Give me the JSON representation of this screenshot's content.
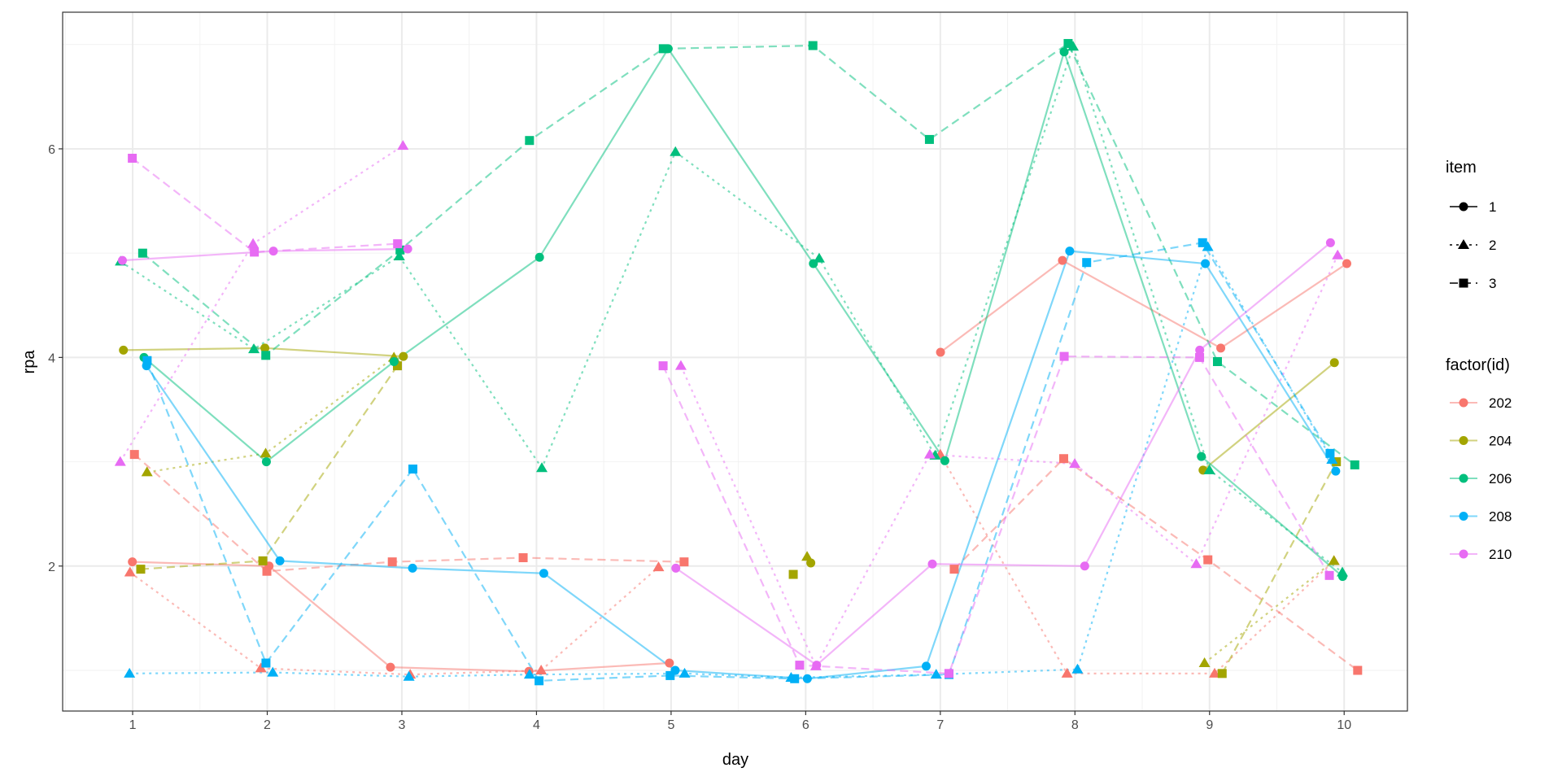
{
  "chart_data": {
    "type": "line",
    "xlabel": "day",
    "ylabel": "rpa",
    "xlim": [
      0.48,
      10.47
    ],
    "ylim": [
      0.61,
      7.31
    ],
    "x_ticks": [
      1,
      2,
      3,
      4,
      5,
      6,
      7,
      8,
      9,
      10
    ],
    "x_tick_labels": [
      "1",
      "2",
      "3",
      "4",
      "5",
      "6",
      "7",
      "8",
      "9",
      "10"
    ],
    "y_ticks": [
      2,
      4,
      6
    ],
    "y_tick_labels": [
      "2",
      "4",
      "6"
    ],
    "grid": true,
    "legend_position": "right",
    "legend_item": {
      "title": "item",
      "entries": [
        {
          "label": "1",
          "shape": "circle",
          "linetype": "solid"
        },
        {
          "label": "2",
          "shape": "triangle",
          "linetype": "dotted"
        },
        {
          "label": "3",
          "shape": "square",
          "linetype": "dashed"
        }
      ]
    },
    "legend_id": {
      "title": "factor(id)",
      "entries": [
        {
          "label": "202",
          "color": "#F8766D"
        },
        {
          "label": "204",
          "color": "#A3A500"
        },
        {
          "label": "206",
          "color": "#00BF7D"
        },
        {
          "label": "208",
          "color": "#00B0F6"
        },
        {
          "label": "210",
          "color": "#E76BF3"
        }
      ]
    },
    "x": [
      1,
      2,
      3,
      4,
      5,
      6,
      7,
      8,
      9,
      10
    ],
    "series": [
      {
        "id": "202",
        "item": "1",
        "values": [
          2.04,
          2.0,
          1.03,
          0.99,
          1.07,
          null,
          4.05,
          4.93,
          4.09,
          4.9
        ]
      },
      {
        "id": "202",
        "item": "2",
        "values": [
          1.94,
          1.02,
          0.96,
          1.0,
          1.99,
          null,
          3.07,
          0.97,
          0.97,
          2.05
        ]
      },
      {
        "id": "202",
        "item": "3",
        "values": [
          3.07,
          1.95,
          2.04,
          2.08,
          2.04,
          null,
          1.97,
          3.03,
          2.06,
          1.0
        ]
      },
      {
        "id": "204",
        "item": "1",
        "values": [
          4.07,
          4.09,
          4.01,
          null,
          null,
          2.03,
          null,
          null,
          2.92,
          3.95
        ]
      },
      {
        "id": "204",
        "item": "2",
        "values": [
          2.9,
          3.08,
          4.0,
          null,
          null,
          2.09,
          null,
          null,
          1.07,
          2.05
        ]
      },
      {
        "id": "204",
        "item": "3",
        "values": [
          1.97,
          2.05,
          3.92,
          null,
          null,
          1.92,
          null,
          null,
          0.97,
          3.0
        ]
      },
      {
        "id": "206",
        "item": "1",
        "values": [
          4.0,
          3.0,
          3.96,
          4.96,
          6.96,
          4.9,
          3.01,
          6.93,
          3.05,
          1.9
        ]
      },
      {
        "id": "206",
        "item": "2",
        "values": [
          4.92,
          4.08,
          4.97,
          2.94,
          5.97,
          4.95,
          3.06,
          6.98,
          2.92,
          1.94
        ]
      },
      {
        "id": "206",
        "item": "3",
        "values": [
          5.0,
          4.02,
          5.03,
          6.08,
          6.96,
          6.99,
          6.09,
          7.01,
          3.96,
          2.97
        ]
      },
      {
        "id": "208",
        "item": "1",
        "values": [
          3.92,
          2.05,
          1.98,
          1.93,
          1.0,
          0.92,
          1.04,
          5.02,
          4.9,
          2.91
        ]
      },
      {
        "id": "208",
        "item": "2",
        "values": [
          0.97,
          0.98,
          0.94,
          0.96,
          0.97,
          0.93,
          0.96,
          1.01,
          5.06,
          3.02
        ]
      },
      {
        "id": "208",
        "item": "3",
        "values": [
          3.97,
          1.07,
          2.93,
          0.9,
          0.95,
          0.92,
          0.96,
          4.91,
          5.1,
          3.08
        ]
      },
      {
        "id": "210",
        "item": "1",
        "values": [
          4.93,
          5.02,
          5.04,
          null,
          1.98,
          1.05,
          2.02,
          2.0,
          4.07,
          5.1
        ]
      },
      {
        "id": "210",
        "item": "2",
        "values": [
          3.0,
          5.09,
          6.03,
          null,
          3.92,
          1.04,
          3.07,
          2.98,
          2.02,
          4.98
        ]
      },
      {
        "id": "210",
        "item": "3",
        "values": [
          5.91,
          5.01,
          5.09,
          null,
          3.92,
          1.05,
          0.97,
          4.01,
          4.0,
          1.91
        ]
      }
    ]
  }
}
